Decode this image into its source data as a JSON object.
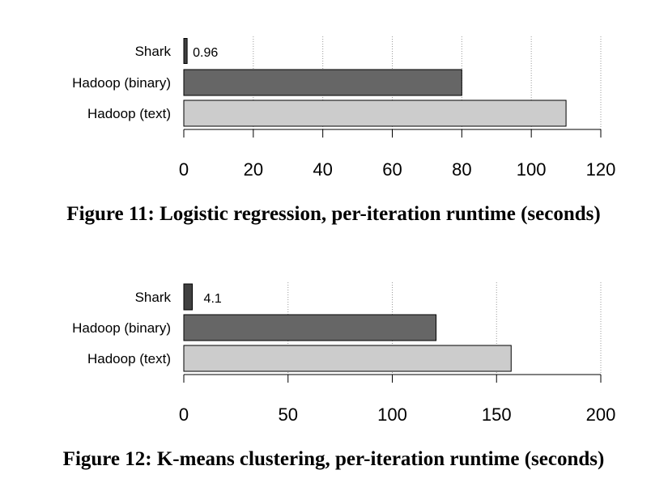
{
  "colors": {
    "shark": "#404040",
    "hadoop_binary": "#666666",
    "hadoop_text": "#cccccc",
    "gridline": "#9a9a9a",
    "axis": "#000000"
  },
  "chart_data": [
    {
      "type": "bar",
      "orientation": "horizontal",
      "title": "",
      "caption": "Figure 11: Logistic regression, per-iteration runtime (seconds)",
      "categories": [
        "Shark",
        "Hadoop (binary)",
        "Hadoop (text)"
      ],
      "values": [
        0.96,
        80,
        110
      ],
      "data_labels": [
        "0.96",
        "",
        ""
      ],
      "xlim": [
        0,
        120
      ],
      "xticks": [
        0,
        20,
        40,
        60,
        80,
        100,
        120
      ],
      "xlabel": "",
      "ylabel": "",
      "grid": true
    },
    {
      "type": "bar",
      "orientation": "horizontal",
      "title": "",
      "caption": "Figure 12: K-means clustering, per-iteration runtime (seconds)",
      "categories": [
        "Shark",
        "Hadoop (binary)",
        "Hadoop (text)"
      ],
      "values": [
        4.1,
        121,
        157
      ],
      "data_labels": [
        "4.1",
        "",
        ""
      ],
      "xlim": [
        0,
        200
      ],
      "xticks": [
        0,
        50,
        100,
        150,
        200
      ],
      "xlabel": "",
      "ylabel": "",
      "grid": true
    }
  ]
}
